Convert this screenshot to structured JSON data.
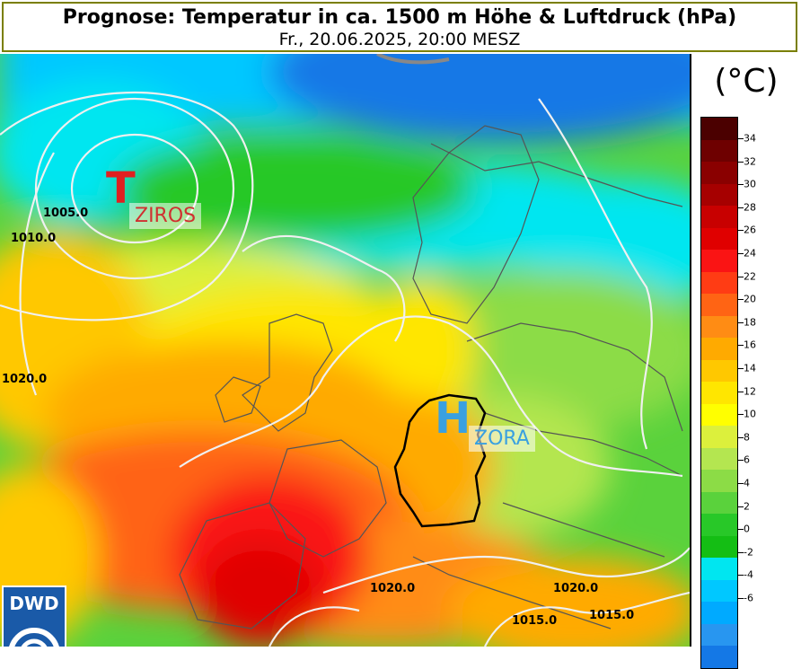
{
  "title": {
    "main": "Prognose: Temperatur in ca. 1500 m Höhe & Luftdruck (hPa)",
    "sub": "Fr., 20.06.2025, 20:00 MESZ"
  },
  "legend": {
    "unit": "(°C)",
    "colors": [
      "#4b0000",
      "#6e0000",
      "#8a0000",
      "#a60000",
      "#c80000",
      "#e00000",
      "#fa1414",
      "#ff3c14",
      "#ff6414",
      "#ff8c14",
      "#ffaa00",
      "#ffc800",
      "#ffe600",
      "#ffff00",
      "#dcf03c",
      "#b4e650",
      "#8cdc46",
      "#5ad23c",
      "#28c828",
      "#14be14",
      "#00e6f0",
      "#00c8ff",
      "#00aaff",
      "#2896f0",
      "#1478e6"
    ],
    "ticks": [
      "34",
      "32",
      "30",
      "28",
      "26",
      "24",
      "22",
      "20",
      "18",
      "16",
      "14",
      "12",
      "10",
      "8",
      "6",
      "4",
      "2",
      "0",
      "-2",
      "-4",
      "-6"
    ]
  },
  "isobar_labels": [
    "1005.0",
    "1010.0",
    "1020.0",
    "1020.0",
    "1020.0",
    "1015.0",
    "1015.0"
  ],
  "pressure_systems": [
    {
      "symbol": "T",
      "name": "ZIROS",
      "symbol_color": "#e02020",
      "name_color": "#d03030"
    },
    {
      "symbol": "H",
      "name": "ZORA",
      "symbol_color": "#3aa0e0",
      "name_color": "#3aa0e0"
    }
  ],
  "logo": {
    "text": "DWD",
    "color": "#1a5aa8"
  }
}
